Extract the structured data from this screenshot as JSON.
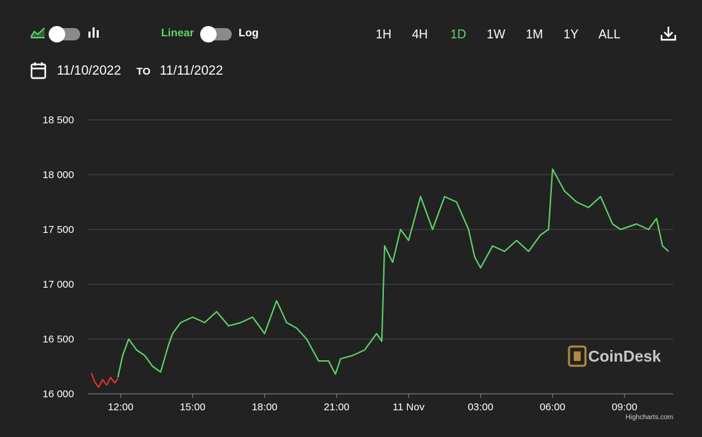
{
  "toolbar": {
    "chart_type_icons": [
      "area-chart-icon",
      "bar-chart-icon"
    ],
    "scale_linear": "Linear",
    "scale_log": "Log",
    "ranges": [
      "1H",
      "4H",
      "1D",
      "1W",
      "1M",
      "1Y",
      "ALL"
    ],
    "active_range": "1D",
    "download_icon": "download-icon"
  },
  "dates": {
    "from": "11/10/2022",
    "to_label": "TO",
    "to": "11/11/2022",
    "calendar_icon": "calendar-icon"
  },
  "colors": {
    "up": "#5ed36b",
    "down": "#e0352b",
    "background": "#222222",
    "grid": "#4a4a4a"
  },
  "watermark": "CoinDesk",
  "credit": "Highcharts.com",
  "chart_data": {
    "type": "line",
    "x_unit": "time",
    "xticks": [
      "12:00",
      "15:00",
      "18:00",
      "21:00",
      "11 Nov",
      "03:00",
      "06:00",
      "09:00"
    ],
    "yticks": [
      "16 000",
      "16 500",
      "17 000",
      "17 500",
      "18 000",
      "18 500"
    ],
    "ylim": [
      16000,
      18500
    ],
    "grid": true,
    "series": [
      {
        "color": "#e0352b",
        "x": [
          "11/10 10:47",
          "11/10 10:55",
          "11/10 11:05",
          "11/10 11:15",
          "11/10 11:25",
          "11/10 11:35",
          "11/10 11:45",
          "11/10 11:53"
        ],
        "y": [
          16190,
          16110,
          16060,
          16130,
          16080,
          16150,
          16100,
          16140
        ]
      },
      {
        "color": "#5ed36b",
        "x": [
          "11/10 11:53",
          "11/10 12:05",
          "11/10 12:20",
          "11/10 12:40",
          "11/10 13:00",
          "11/10 13:20",
          "11/10 13:40",
          "11/10 14:00",
          "11/10 14:10",
          "11/10 14:30",
          "11/10 15:00",
          "11/10 15:30",
          "11/10 16:00",
          "11/10 16:30",
          "11/10 17:00",
          "11/10 17:30",
          "11/10 18:00",
          "11/10 18:30",
          "11/10 18:55",
          "11/10 19:20",
          "11/10 19:45",
          "11/10 20:15",
          "11/10 20:40",
          "11/10 20:57",
          "11/10 21:10",
          "11/10 21:40",
          "11/10 22:10",
          "11/10 22:40",
          "11/10 22:53",
          "11/10 23:00",
          "11/10 23:20",
          "11/10 23:40",
          "11/11 00:00",
          "11/11 00:30",
          "11/11 01:00",
          "11/11 01:30",
          "11/11 02:00",
          "11/11 02:30",
          "11/11 02:45",
          "11/11 03:00",
          "11/11 03:30",
          "11/11 04:00",
          "11/11 04:30",
          "11/11 05:00",
          "11/11 05:30",
          "11/11 05:50",
          "11/11 06:00",
          "11/11 06:30",
          "11/11 07:00",
          "11/11 07:30",
          "11/11 08:00",
          "11/11 08:30",
          "11/11 08:50",
          "11/11 09:30",
          "11/11 10:00",
          "11/11 10:20",
          "11/11 10:35",
          "11/11 10:50"
        ],
        "y": [
          16150,
          16350,
          16500,
          16400,
          16350,
          16250,
          16200,
          16450,
          16550,
          16650,
          16700,
          16650,
          16750,
          16620,
          16650,
          16700,
          16550,
          16850,
          16650,
          16600,
          16500,
          16300,
          16300,
          16180,
          16320,
          16350,
          16400,
          16550,
          16480,
          17350,
          17200,
          17500,
          17400,
          17800,
          17500,
          17800,
          17750,
          17500,
          17250,
          17150,
          17350,
          17300,
          17400,
          17300,
          17450,
          17500,
          18050,
          17850,
          17750,
          17700,
          17800,
          17550,
          17500,
          17550,
          17500,
          17600,
          17350,
          17300
        ]
      }
    ]
  }
}
